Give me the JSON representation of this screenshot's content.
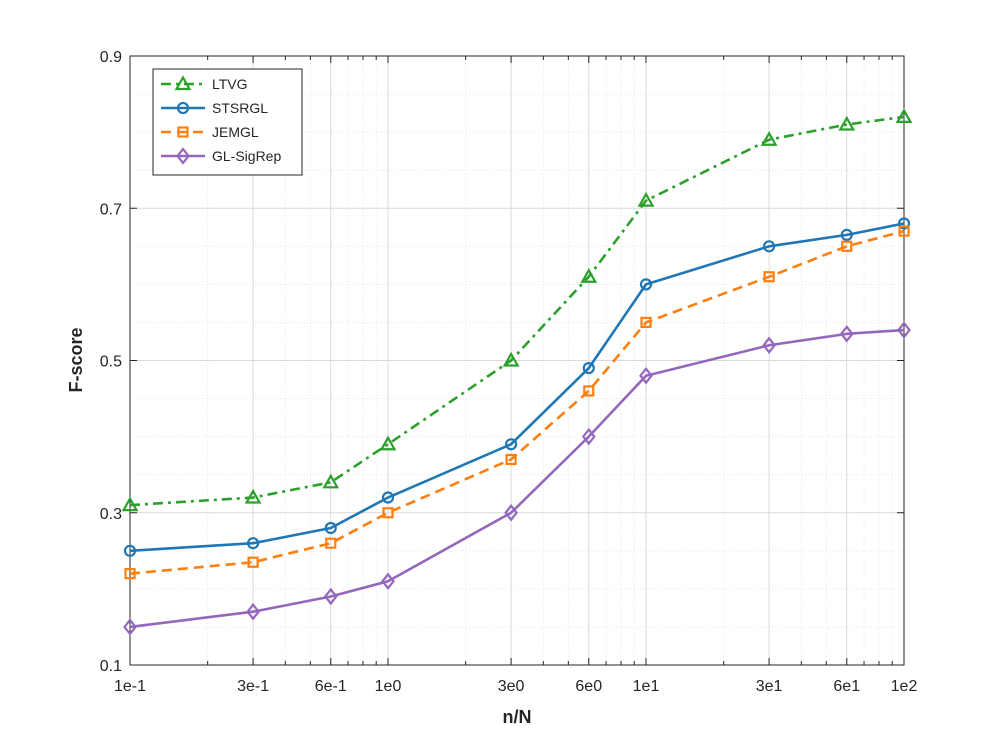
{
  "chart_data": {
    "type": "line",
    "title": "",
    "xlabel": "n/N",
    "ylabel": "F-score",
    "xscale": "log",
    "xlim": [
      0.1,
      100
    ],
    "ylim": [
      0.1,
      0.9
    ],
    "x": [
      0.1,
      0.3,
      0.6,
      1,
      3,
      6,
      10,
      30,
      60,
      100
    ],
    "x_ticks": [
      0.1,
      0.3,
      0.6,
      1,
      3,
      6,
      10,
      30,
      60,
      100
    ],
    "x_tick_labels": [
      "1e-1",
      "3e-1",
      "6e-1",
      "1e0",
      "3e0",
      "6e0",
      "1e1",
      "3e1",
      "6e1",
      "1e2"
    ],
    "y_ticks": [
      0.1,
      0.3,
      0.5,
      0.7,
      0.9
    ],
    "y_tick_labels": [
      "0.1",
      "0.3",
      "0.5",
      "0.7",
      "0.9"
    ],
    "grid": true,
    "minor_grid": true,
    "legend_position": "top-left",
    "series": [
      {
        "name": "LTVG",
        "color": "#2ca02c",
        "line_style": "dash-dot",
        "marker": "triangle",
        "values": [
          0.31,
          0.32,
          0.34,
          0.39,
          0.5,
          0.61,
          0.71,
          0.79,
          0.81,
          0.82
        ]
      },
      {
        "name": "STSRGL",
        "color": "#1f77b4",
        "line_style": "solid",
        "marker": "circle",
        "values": [
          0.25,
          0.26,
          0.28,
          0.32,
          0.39,
          0.49,
          0.6,
          0.65,
          0.665,
          0.68
        ]
      },
      {
        "name": "JEMGL",
        "color": "#ff7f0e",
        "line_style": "dashed",
        "marker": "square",
        "values": [
          0.22,
          0.235,
          0.26,
          0.3,
          0.37,
          0.46,
          0.55,
          0.61,
          0.65,
          0.67
        ]
      },
      {
        "name": "GL-SigRep",
        "color": "#9467bd",
        "line_style": "solid",
        "marker": "diamond",
        "values": [
          0.15,
          0.17,
          0.19,
          0.21,
          0.3,
          0.4,
          0.48,
          0.52,
          0.535,
          0.54
        ]
      }
    ]
  }
}
